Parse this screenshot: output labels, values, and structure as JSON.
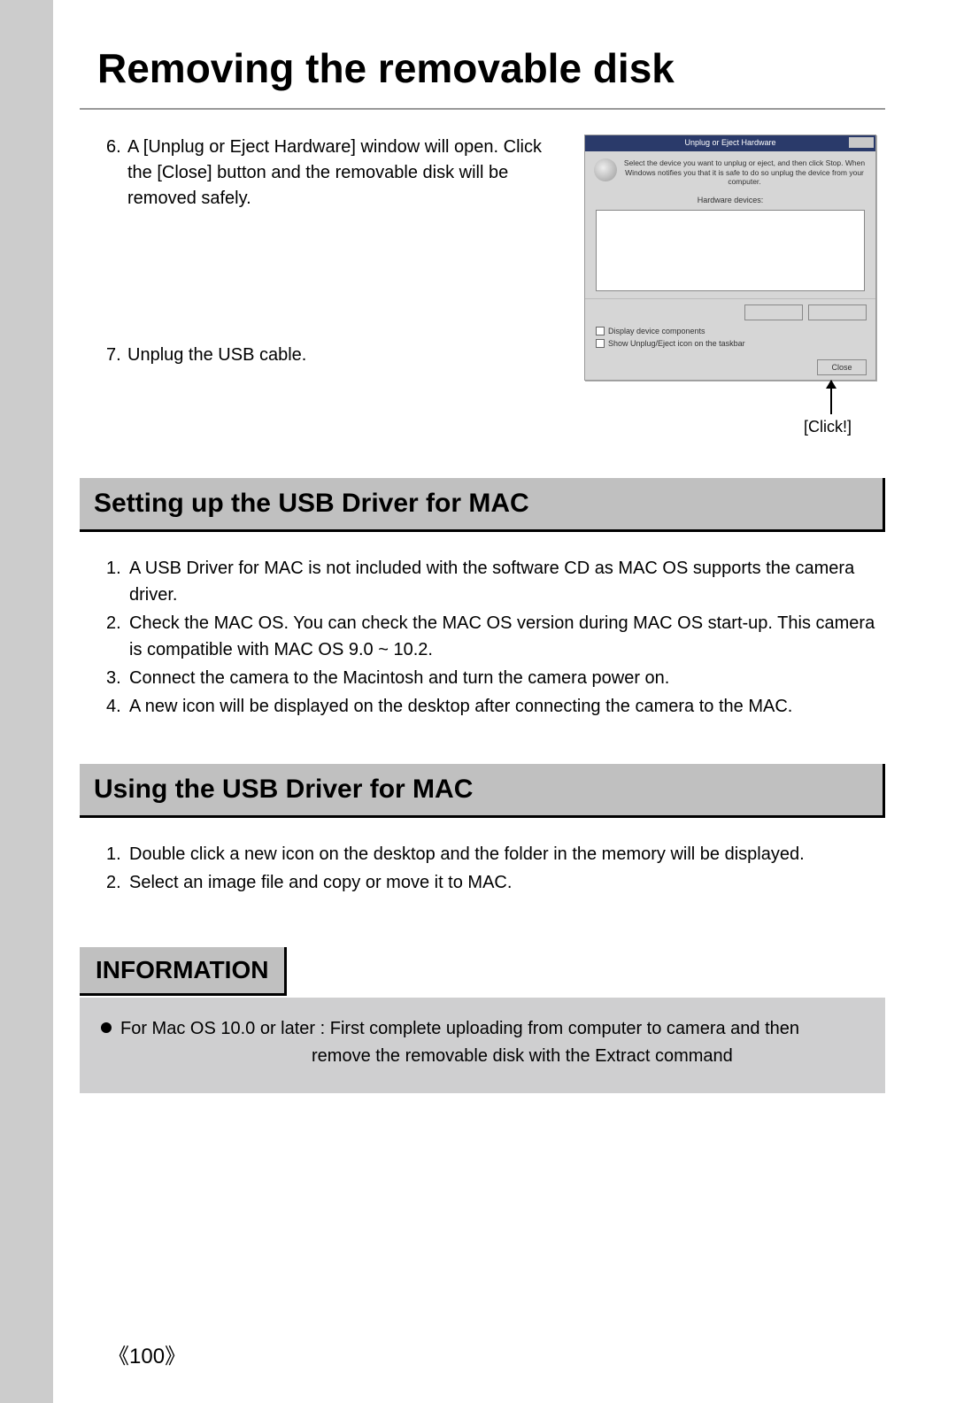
{
  "title": "Removing the removable disk",
  "steps_top": [
    {
      "num": "6.",
      "text": "A [Unplug or Eject Hardware] window will open. Click the [Close] button and the removable disk will be removed safely."
    },
    {
      "num": "7.",
      "text": "Unplug the USB cable."
    }
  ],
  "dialog": {
    "titlebar": "Unplug or Eject Hardware",
    "header_text": "Select the device you want to unplug or eject, and then click Stop. When Windows notifies you that it is safe to do so unplug the device from your computer.",
    "list_label": "Hardware devices:",
    "checkbox1": "Display device components",
    "checkbox2": "Show Unplug/Eject icon on the taskbar",
    "close_btn": "Close"
  },
  "click_label": "[Click!]",
  "section1": {
    "title": "Setting up the USB Driver for MAC",
    "items": [
      {
        "num": "1.",
        "text": "A USB Driver for MAC is not included with the software CD as MAC OS supports the camera driver."
      },
      {
        "num": "2.",
        "text": "Check the MAC OS. You can check the MAC OS version during MAC OS start-up. This camera is compatible with MAC OS 9.0 ~ 10.2."
      },
      {
        "num": "3.",
        "text": "Connect the camera to the Macintosh and turn the camera power on."
      },
      {
        "num": "4.",
        "text": "A new icon will be displayed on the desktop after connecting the camera to the MAC."
      }
    ]
  },
  "section2": {
    "title": "Using the USB Driver for MAC",
    "items": [
      {
        "num": "1.",
        "text": "Double click a new icon on the desktop and the folder in the memory will be displayed."
      },
      {
        "num": "2.",
        "text": "Select an image file and copy or move it to MAC."
      }
    ]
  },
  "info": {
    "title": "INFORMATION",
    "line1": "For Mac OS 10.0 or later : First complete uploading from computer to camera and then",
    "line2": "remove the removable disk with the Extract command"
  },
  "page_number": "100",
  "bracket_left": "《",
  "bracket_right": "》"
}
